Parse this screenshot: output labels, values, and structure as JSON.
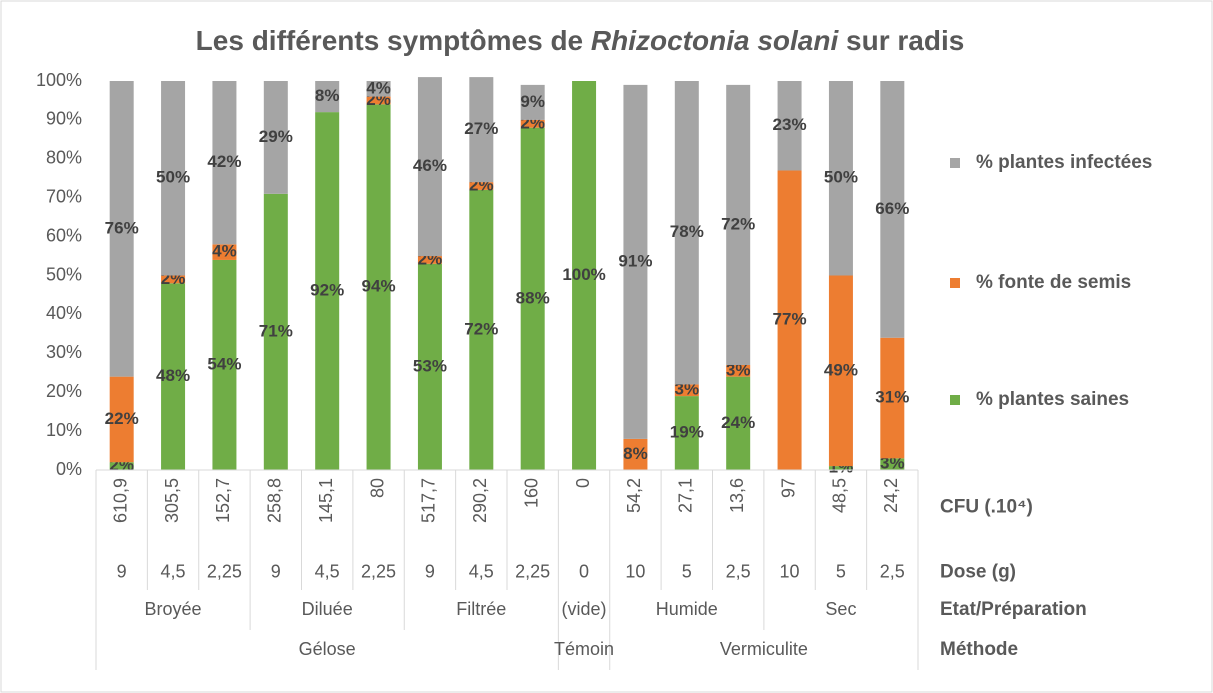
{
  "chart_data": {
    "type": "stacked_bar",
    "title": [
      "Les différents symptômes de ",
      "Rhizoctonia solani",
      " sur radis"
    ],
    "ylim": [
      0,
      100
    ],
    "yticks": [
      {
        "value": 0,
        "label": "0%"
      },
      {
        "value": 10,
        "label": "10%"
      },
      {
        "value": 20,
        "label": "20%"
      },
      {
        "value": 30,
        "label": "30%"
      },
      {
        "value": 40,
        "label": "40%"
      },
      {
        "value": 50,
        "label": "50%"
      },
      {
        "value": 60,
        "label": "60%"
      },
      {
        "value": 70,
        "label": "70%"
      },
      {
        "value": 80,
        "label": "80%"
      },
      {
        "value": 90,
        "label": "90%"
      },
      {
        "value": 100,
        "label": "100%"
      }
    ],
    "category_levels": [
      {
        "name": "CFU (.10⁴)",
        "labels": [
          "610,9",
          "305,5",
          "152,7",
          "258,8",
          "145,1",
          "80",
          "517,7",
          "290,2",
          "160",
          "0",
          "54,2",
          "27,1",
          "13,6",
          "97",
          "48,5",
          "24,2"
        ]
      },
      {
        "name": "Dose (g)",
        "labels": [
          "9",
          "4,5",
          "2,25",
          "9",
          "4,5",
          "2,25",
          "9",
          "4,5",
          "2,25",
          "0",
          "10",
          "5",
          "2,5",
          "10",
          "5",
          "2,5"
        ]
      },
      {
        "name": "Etat/Préparation",
        "labels": [
          "Broyée",
          null,
          null,
          "Diluée",
          null,
          null,
          "Filtrée",
          null,
          null,
          "(vide)",
          "Humide",
          null,
          null,
          "Sec",
          null,
          null
        ]
      },
      {
        "name": "Méthode",
        "labels": [
          "Gélose",
          null,
          null,
          null,
          null,
          null,
          null,
          null,
          null,
          "Témoin",
          "Vermiculite",
          null,
          null,
          null,
          null,
          null
        ]
      }
    ],
    "series": [
      {
        "name": "% plantes saines",
        "color": "#70ad47",
        "values": [
          2,
          48,
          54,
          71,
          92,
          94,
          53,
          72,
          88,
          100,
          null,
          19,
          24,
          null,
          1,
          3
        ],
        "value_labels": [
          "2%",
          "48%",
          "54%",
          "71%",
          "92%",
          "94%",
          "53%",
          "72%",
          "88%",
          "100%",
          null,
          "19%",
          "24%",
          null,
          "1%",
          "3%"
        ]
      },
      {
        "name": "% fonte de semis",
        "color": "#ed7d31",
        "values": [
          22,
          2,
          4,
          null,
          null,
          2,
          2,
          2,
          2,
          null,
          8,
          3,
          3,
          77,
          49,
          31
        ],
        "value_labels": [
          "22%",
          "2%",
          "4%",
          null,
          null,
          "2%",
          "2%",
          "2%",
          "2%",
          null,
          "8%",
          "3%",
          "3%",
          "77%",
          "49%",
          "31%"
        ]
      },
      {
        "name": "% plantes infectées",
        "color": "#a5a5a5",
        "values": [
          76,
          50,
          42,
          29,
          8,
          4,
          46,
          27,
          9,
          null,
          91,
          78,
          72,
          23,
          50,
          66
        ],
        "value_labels": [
          "76%",
          "50%",
          "42%",
          "29%",
          "8%",
          "4%",
          "46%",
          "27%",
          "9%",
          null,
          "91%",
          "78%",
          "72%",
          "23%",
          "50%",
          "66%"
        ]
      }
    ]
  }
}
